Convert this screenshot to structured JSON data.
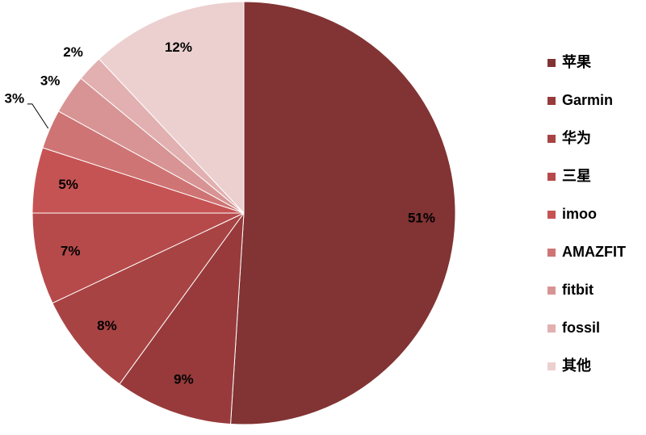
{
  "chart_data": {
    "type": "pie",
    "categories": [
      "苹果",
      "Garmin",
      "华为",
      "三星",
      "imoo",
      "AMAZFIT",
      "fitbit",
      "fossil",
      "其他"
    ],
    "values": [
      51,
      9,
      8,
      7,
      5,
      3,
      3,
      2,
      12
    ],
    "value_labels": [
      "51%",
      "9%",
      "8%",
      "7%",
      "5%",
      "3%",
      "3%",
      "2%",
      "12%"
    ],
    "colors": [
      "#823333",
      "#983a3b",
      "#a84344",
      "#b64a4a",
      "#c65353",
      "#cf7474",
      "#d89494",
      "#e2b0b0",
      "#ecd0d0"
    ],
    "legend": "right"
  }
}
